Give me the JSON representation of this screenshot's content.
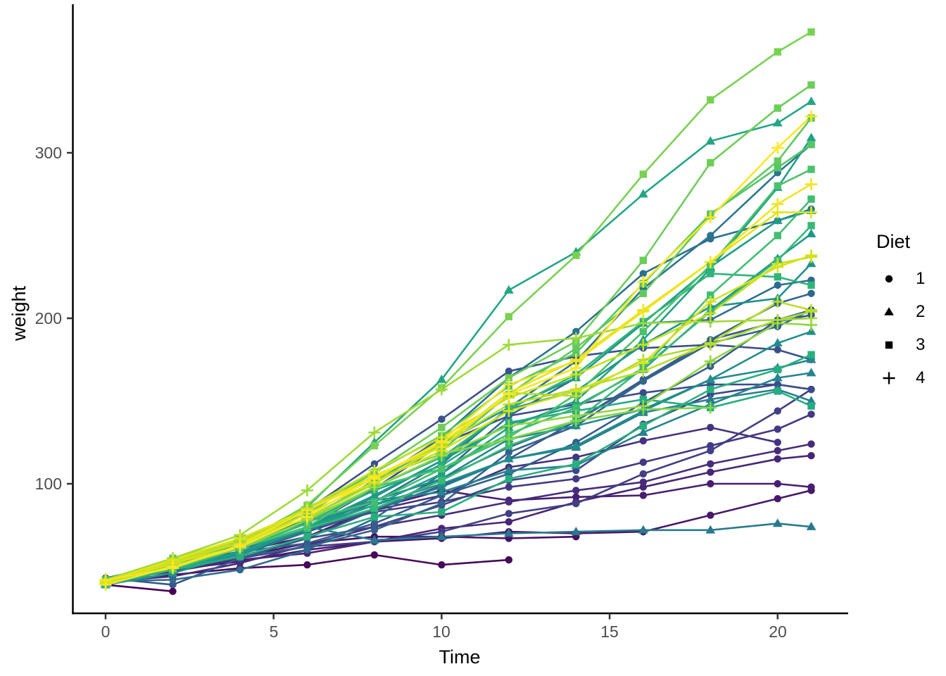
{
  "chart_data": {
    "type": "line",
    "title": "",
    "xlabel": "Time",
    "ylabel": "weight",
    "x_ticks": [
      0,
      5,
      10,
      15,
      20
    ],
    "y_ticks": [
      100,
      200,
      300
    ],
    "x_range": [
      -1.05,
      22.05
    ],
    "y_range": [
      18,
      390
    ],
    "grid": false,
    "legend": {
      "title": "Diet",
      "position": "right",
      "entries": [
        {
          "label": "1",
          "shape": "circle"
        },
        {
          "label": "2",
          "shape": "triangle"
        },
        {
          "label": "3",
          "shape": "square"
        },
        {
          "label": "4",
          "shape": "plus"
        }
      ]
    },
    "colors": {
      "background": "#ffffff",
      "axis_line": "#000000",
      "tick_mark": "#333333",
      "tick_label": "#4d4d4d",
      "axis_title": "#000000",
      "legend_key": "#000000",
      "viridis_stops": [
        "#440154",
        "#481567",
        "#482677",
        "#453781",
        "#3f4788",
        "#39568c",
        "#33638d",
        "#2d708e",
        "#287d8e",
        "#238a8d",
        "#1f968b",
        "#20a386",
        "#29af7f",
        "#3cbc75",
        "#56c667",
        "#75d054",
        "#95d840",
        "#b8de29",
        "#dce318",
        "#fde725"
      ]
    },
    "times": [
      0,
      2,
      4,
      6,
      8,
      10,
      12,
      14,
      16,
      18,
      20,
      21
    ],
    "series": [
      {
        "diet": 1,
        "shape": "circle",
        "color_index": 1,
        "weights": [
          39,
          35
        ]
      },
      {
        "diet": 1,
        "shape": "circle",
        "color_index": 2,
        "weights": [
          41,
          45,
          49,
          51,
          57,
          51,
          54
        ]
      },
      {
        "diet": 1,
        "shape": "circle",
        "color_index": 3,
        "weights": [
          41,
          49,
          56,
          64,
          68,
          68,
          67,
          68
        ]
      },
      {
        "diet": 1,
        "shape": "circle",
        "color_index": 4,
        "weights": [
          41,
          48,
          53,
          60,
          65,
          67,
          71,
          70,
          71,
          81,
          91,
          96
        ]
      },
      {
        "diet": 1,
        "shape": "circle",
        "color_index": 5,
        "weights": [
          42,
          51,
          59,
          68,
          85,
          96,
          90,
          92,
          93,
          100,
          100,
          98
        ]
      },
      {
        "diet": 1,
        "shape": "circle",
        "color_index": 6,
        "weights": [
          41,
          47,
          54,
          58,
          65,
          73,
          77,
          89,
          98,
          107,
          115,
          117
        ]
      },
      {
        "diet": 1,
        "shape": "circle",
        "color_index": 7,
        "weights": [
          41,
          44,
          52,
          63,
          74,
          81,
          89,
          96,
          101,
          112,
          120,
          124
        ]
      },
      {
        "diet": 1,
        "shape": "circle",
        "color_index": 8,
        "weights": [
          42,
          50,
          61,
          71,
          84,
          93,
          110,
          116,
          126,
          134,
          125
        ]
      },
      {
        "diet": 1,
        "shape": "circle",
        "color_index": 9,
        "weights": [
          42,
          51,
          61,
          72,
          83,
          89,
          98,
          103,
          113,
          123,
          133,
          142
        ]
      },
      {
        "diet": 1,
        "shape": "circle",
        "color_index": 10,
        "weights": [
          43,
          48,
          55,
          62,
          65,
          71,
          82,
          88,
          106,
          120,
          144,
          157
        ]
      },
      {
        "diet": 1,
        "shape": "circle",
        "color_index": 11,
        "weights": [
          42,
          49,
          56,
          67,
          74,
          87,
          102,
          108,
          136,
          154,
          160,
          157
        ]
      },
      {
        "diet": 1,
        "shape": "circle",
        "color_index": 12,
        "weights": [
          41,
          49,
          59,
          74,
          97,
          124,
          141,
          148,
          155,
          160,
          160,
          157
        ]
      },
      {
        "diet": 1,
        "shape": "circle",
        "color_index": 13,
        "weights": [
          43,
          51,
          63,
          84,
          112,
          139,
          168,
          177,
          182,
          184,
          181,
          175
        ]
      },
      {
        "diet": 1,
        "shape": "circle",
        "color_index": 14,
        "weights": [
          43,
          39,
          55,
          67,
          84,
          99,
          115,
          138,
          163,
          187,
          198,
          202
        ]
      },
      {
        "diet": 1,
        "shape": "circle",
        "color_index": 15,
        "weights": [
          42,
          51,
          59,
          64,
          76,
          93,
          106,
          125,
          149,
          171,
          199,
          205
        ]
      },
      {
        "diet": 1,
        "shape": "circle",
        "color_index": 16,
        "weights": [
          41,
          49,
          56,
          62,
          72,
          88,
          119,
          135,
          162,
          185,
          195,
          205
        ]
      },
      {
        "diet": 1,
        "shape": "circle",
        "color_index": 17,
        "weights": [
          40,
          49,
          58,
          72,
          84,
          103,
          122,
          138,
          162,
          187,
          209,
          215
        ]
      },
      {
        "diet": 1,
        "shape": "circle",
        "color_index": 18,
        "weights": [
          41,
          42,
          48,
          60,
          79,
          106,
          141,
          164,
          197,
          199,
          220,
          223
        ]
      },
      {
        "diet": 1,
        "shape": "circle",
        "color_index": 19,
        "weights": [
          41,
          49,
          62,
          79,
          101,
          128,
          164,
          192,
          227,
          248,
          259,
          266
        ]
      },
      {
        "diet": 1,
        "shape": "circle",
        "color_index": 20,
        "weights": [
          41,
          49,
          57,
          71,
          89,
          112,
          146,
          174,
          218,
          250,
          288,
          305
        ]
      },
      {
        "diet": 2,
        "shape": "triangle",
        "color_index": 21,
        "weights": [
          42,
          52,
          58,
          74,
          66,
          68,
          70,
          71,
          72,
          72,
          76,
          74
        ]
      },
      {
        "diet": 2,
        "shape": "triangle",
        "color_index": 22,
        "weights": [
          42,
          48,
          59,
          72,
          85,
          98,
          115,
          122,
          143,
          151,
          157,
          150
        ]
      },
      {
        "diet": 2,
        "shape": "triangle",
        "color_index": 23,
        "weights": [
          41,
          55,
          64,
          77,
          90,
          95,
          108,
          111,
          131,
          148,
          164,
          167
        ]
      },
      {
        "diet": 2,
        "shape": "triangle",
        "color_index": 24,
        "weights": [
          43,
          52,
          61,
          73,
          90,
          103,
          127,
          135,
          145,
          163,
          170,
          175
        ]
      },
      {
        "diet": 2,
        "shape": "triangle",
        "color_index": 25,
        "weights": [
          39,
          46,
          58,
          73,
          87,
          100,
          115,
          123,
          144,
          163,
          185,
          192
        ]
      },
      {
        "diet": 2,
        "shape": "triangle",
        "color_index": 26,
        "weights": [
          39,
          46,
          58,
          73,
          92,
          114,
          145,
          156,
          184,
          207,
          212,
          233
        ]
      },
      {
        "diet": 2,
        "shape": "triangle",
        "color_index": 27,
        "weights": [
          42,
          48,
          57,
          74,
          93,
          114,
          136,
          147,
          169,
          205,
          236,
          251
        ]
      },
      {
        "diet": 2,
        "shape": "triangle",
        "color_index": 28,
        "weights": [
          40,
          49,
          62,
          78,
          102,
          124,
          146,
          164,
          197,
          231,
          259,
          265
        ]
      },
      {
        "diet": 2,
        "shape": "triangle",
        "color_index": 29,
        "weights": [
          39,
          48,
          59,
          74,
          87,
          106,
          134,
          150,
          187,
          230,
          279,
          309
        ]
      },
      {
        "diet": 2,
        "shape": "triangle",
        "color_index": 30,
        "weights": [
          40,
          50,
          62,
          86,
          125,
          163,
          217,
          240,
          275,
          307,
          318,
          331
        ]
      },
      {
        "diet": 3,
        "shape": "square",
        "color_index": 31,
        "weights": [
          39,
          50,
          63,
          77,
          96,
          111,
          137,
          144,
          151,
          146,
          156,
          147
        ]
      },
      {
        "diet": 3,
        "shape": "square",
        "color_index": 32,
        "weights": [
          41,
          48,
          56,
          68,
          80,
          83,
          103,
          112,
          135,
          157,
          169,
          178
        ]
      },
      {
        "diet": 3,
        "shape": "square",
        "color_index": 33,
        "weights": [
          39,
          48,
          61,
          76,
          98,
          116,
          145,
          166,
          198,
          227,
          225,
          220
        ]
      },
      {
        "diet": 3,
        "shape": "square",
        "color_index": 34,
        "weights": [
          42,
          53,
          62,
          73,
          85,
          102,
          123,
          138,
          170,
          204,
          235,
          256
        ]
      },
      {
        "diet": 3,
        "shape": "square",
        "color_index": 35,
        "weights": [
          42,
          50,
          61,
          78,
          89,
          109,
          130,
          146,
          170,
          214,
          250,
          272
        ]
      },
      {
        "diet": 3,
        "shape": "square",
        "color_index": 36,
        "weights": [
          41,
          49,
          61,
          74,
          98,
          109,
          128,
          154,
          192,
          232,
          280,
          290
        ]
      },
      {
        "diet": 3,
        "shape": "square",
        "color_index": 37,
        "weights": [
          41,
          49,
          65,
          82,
          107,
          129,
          159,
          179,
          221,
          263,
          291,
          305
        ]
      },
      {
        "diet": 3,
        "shape": "square",
        "color_index": 38,
        "weights": [
          41,
          55,
          66,
          79,
          101,
          120,
          154,
          182,
          215,
          262,
          295,
          321
        ]
      },
      {
        "diet": 3,
        "shape": "square",
        "color_index": 39,
        "weights": [
          41,
          49,
          63,
          85,
          107,
          134,
          164,
          186,
          235,
          294,
          327,
          341
        ]
      },
      {
        "diet": 3,
        "shape": "square",
        "color_index": 40,
        "weights": [
          41,
          53,
          64,
          87,
          123,
          158,
          201,
          238,
          287,
          332,
          361,
          373
        ]
      },
      {
        "diet": 4,
        "shape": "plus",
        "color_index": 41,
        "weights": [
          42,
          51,
          65,
          86,
          103,
          118,
          127,
          138,
          145,
          146
        ]
      },
      {
        "diet": 4,
        "shape": "plus",
        "color_index": 42,
        "weights": [
          41,
          50,
          61,
          78,
          98,
          117,
          135,
          141,
          147,
          174,
          197,
          196
        ]
      },
      {
        "diet": 4,
        "shape": "plus",
        "color_index": 43,
        "weights": [
          42,
          55,
          69,
          96,
          131,
          157,
          184,
          188,
          197,
          198,
          199,
          200
        ]
      },
      {
        "diet": 4,
        "shape": "plus",
        "color_index": 44,
        "weights": [
          42,
          51,
          66,
          85,
          103,
          124,
          155,
          153,
          175,
          184,
          199,
          204
        ]
      },
      {
        "diet": 4,
        "shape": "plus",
        "color_index": 45,
        "weights": [
          41,
          53,
          66,
          79,
          100,
          123,
          148,
          157,
          168,
          185,
          210,
          205
        ]
      },
      {
        "diet": 4,
        "shape": "plus",
        "color_index": 46,
        "weights": [
          40,
          53,
          64,
          85,
          108,
          128,
          152,
          166,
          184,
          203,
          233,
          237
        ]
      },
      {
        "diet": 4,
        "shape": "plus",
        "color_index": 47,
        "weights": [
          40,
          52,
          62,
          82,
          101,
          120,
          144,
          156,
          173,
          210,
          231,
          238
        ]
      },
      {
        "diet": 4,
        "shape": "plus",
        "color_index": 48,
        "weights": [
          41,
          54,
          67,
          84,
          105,
          122,
          155,
          175,
          205,
          234,
          264,
          264
        ]
      },
      {
        "diet": 4,
        "shape": "plus",
        "color_index": 49,
        "weights": [
          42,
          49,
          63,
          84,
          103,
          126,
          160,
          174,
          204,
          234,
          269,
          281
        ]
      },
      {
        "diet": 4,
        "shape": "plus",
        "color_index": 50,
        "weights": [
          39,
          50,
          62,
          80,
          104,
          125,
          154,
          170,
          222,
          261,
          303,
          322
        ]
      }
    ]
  }
}
